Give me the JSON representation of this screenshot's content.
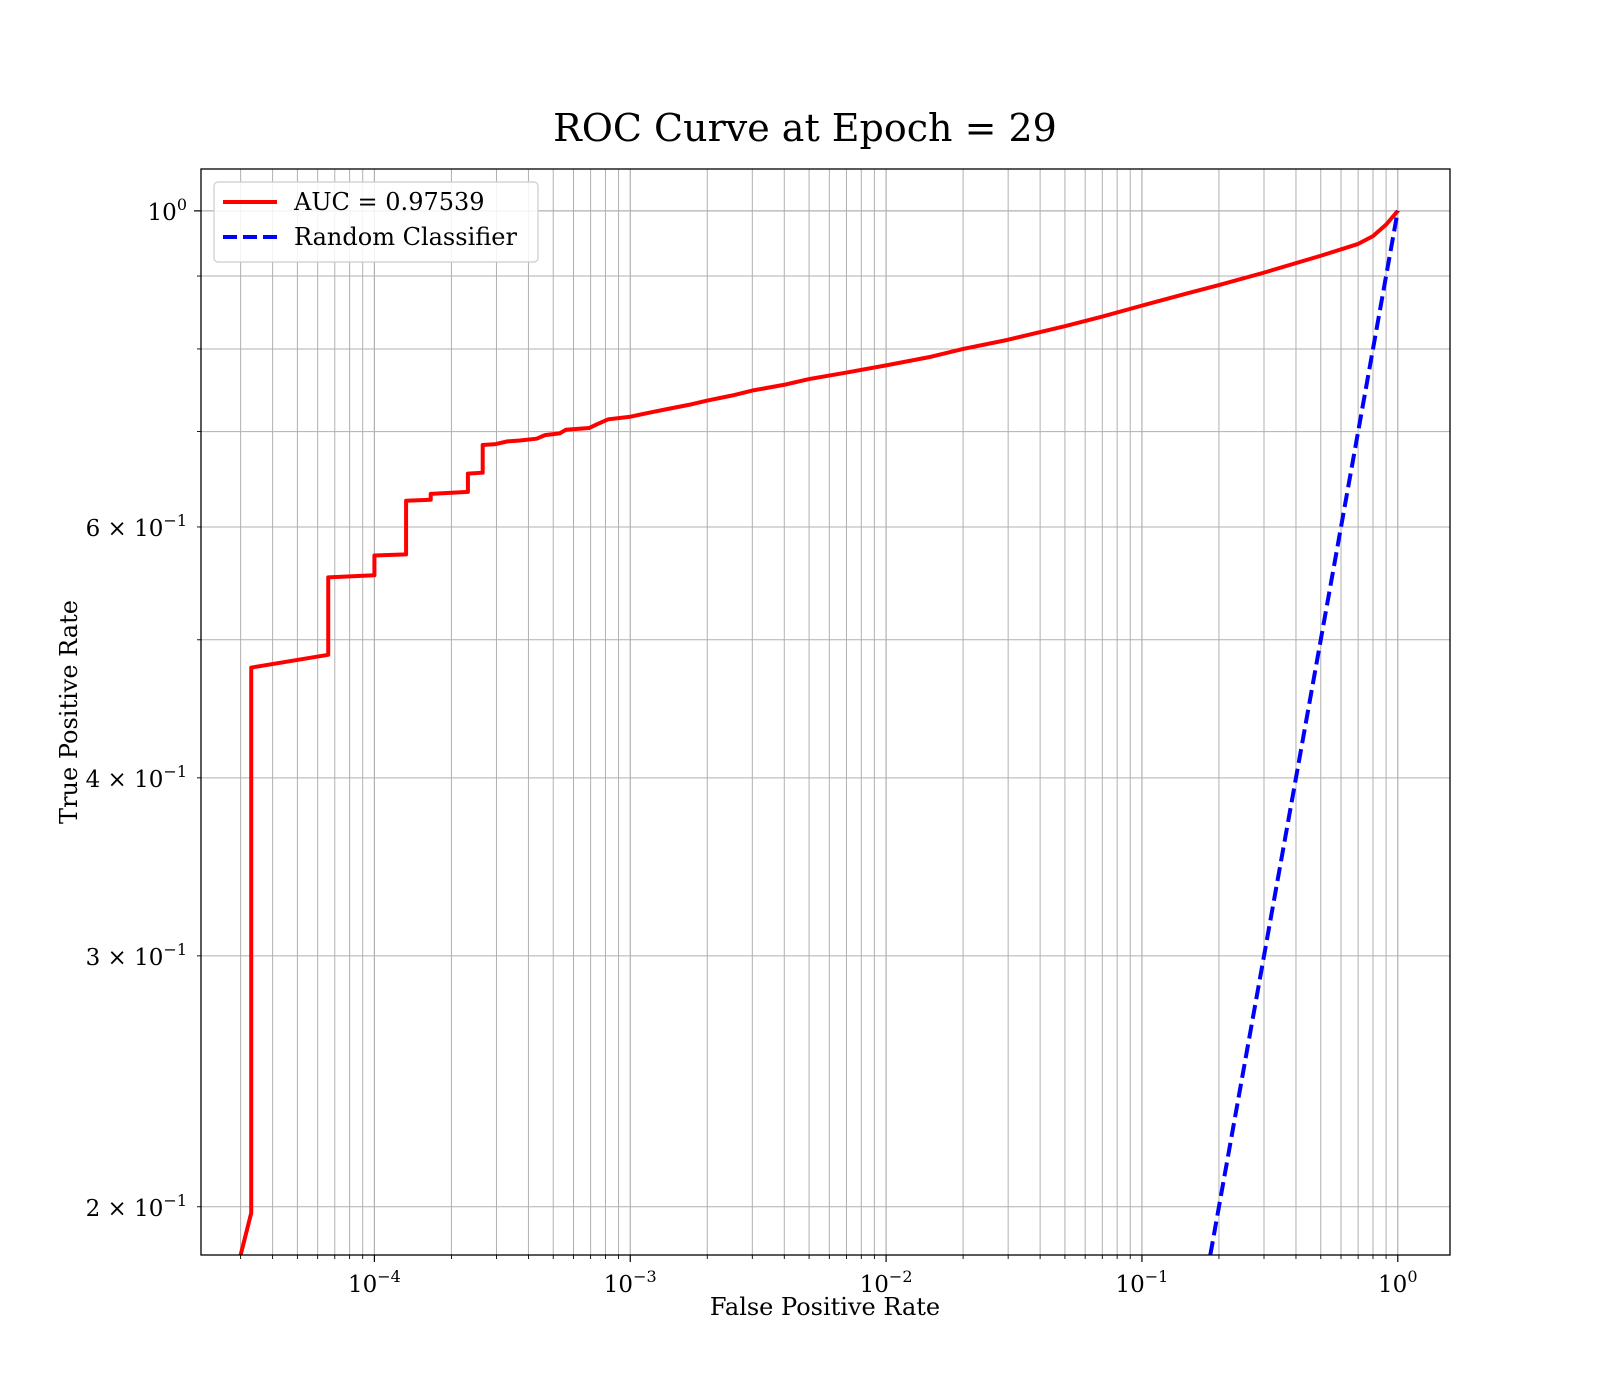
{
  "chart_data": {
    "type": "line",
    "title": "ROC Curve at Epoch = 29",
    "xlabel": "False Positive Rate",
    "ylabel": "True Positive Rate",
    "xscale": "log",
    "yscale": "log",
    "xlim": [
      2.1e-05,
      1.6
    ],
    "ylim": [
      0.185,
      1.07
    ],
    "grid": "major and minor",
    "legend_position": "upper-left",
    "x_ticks": [
      {
        "value": 0.0001,
        "base": "10",
        "exp": "−4"
      },
      {
        "value": 0.001,
        "base": "10",
        "exp": "−3"
      },
      {
        "value": 0.01,
        "base": "10",
        "exp": "−2"
      },
      {
        "value": 0.1,
        "base": "10",
        "exp": "−1"
      },
      {
        "value": 1,
        "base": "10",
        "exp": "0"
      }
    ],
    "y_ticks": [
      {
        "value": 1.0,
        "base": "10",
        "exp": "0"
      },
      {
        "value": 0.6,
        "base": "6 × 10",
        "exp": "−1"
      },
      {
        "value": 0.4,
        "base": "4 × 10",
        "exp": "−1"
      },
      {
        "value": 0.3,
        "base": "3 × 10",
        "exp": "−1"
      },
      {
        "value": 0.2,
        "base": "2 × 10",
        "exp": "−1"
      }
    ],
    "series": [
      {
        "name": "AUC = 0.97539",
        "color": "#ff0000",
        "style": "solid",
        "points": [
          [
            3e-05,
            0.185
          ],
          [
            3.3e-05,
            0.198
          ],
          [
            3.3e-05,
            0.478
          ],
          [
            6.6e-05,
            0.488
          ],
          [
            6.6e-05,
            0.553
          ],
          [
            0.0001,
            0.555
          ],
          [
            0.0001,
            0.573
          ],
          [
            0.000133,
            0.574
          ],
          [
            0.000133,
            0.626
          ],
          [
            0.000166,
            0.627
          ],
          [
            0.000166,
            0.633
          ],
          [
            0.000232,
            0.635
          ],
          [
            0.000232,
            0.654
          ],
          [
            0.000265,
            0.655
          ],
          [
            0.000265,
            0.685
          ],
          [
            0.000298,
            0.686
          ],
          [
            0.000331,
            0.689
          ],
          [
            0.00037,
            0.69
          ],
          [
            0.000431,
            0.692
          ],
          [
            0.000464,
            0.696
          ],
          [
            0.00053,
            0.698
          ],
          [
            0.00056,
            0.702
          ],
          [
            0.00069,
            0.704
          ],
          [
            0.00075,
            0.709
          ],
          [
            0.00082,
            0.714
          ],
          [
            0.001,
            0.717
          ],
          [
            0.0012,
            0.722
          ],
          [
            0.0014,
            0.726
          ],
          [
            0.0017,
            0.731
          ],
          [
            0.002,
            0.736
          ],
          [
            0.0025,
            0.742
          ],
          [
            0.003,
            0.748
          ],
          [
            0.004,
            0.755
          ],
          [
            0.005,
            0.762
          ],
          [
            0.007,
            0.77
          ],
          [
            0.01,
            0.779
          ],
          [
            0.015,
            0.79
          ],
          [
            0.02,
            0.8
          ],
          [
            0.03,
            0.812
          ],
          [
            0.05,
            0.83
          ],
          [
            0.07,
            0.843
          ],
          [
            0.1,
            0.858
          ],
          [
            0.15,
            0.875
          ],
          [
            0.2,
            0.887
          ],
          [
            0.3,
            0.905
          ],
          [
            0.5,
            0.93
          ],
          [
            0.7,
            0.948
          ],
          [
            0.8,
            0.96
          ],
          [
            0.9,
            0.978
          ],
          [
            1.0,
            1.0
          ]
        ]
      },
      {
        "name": "Random Classifier",
        "color": "#0000ff",
        "style": "dashed",
        "points": [
          [
            0.185,
            0.185
          ],
          [
            1.0,
            1.0
          ]
        ]
      }
    ]
  }
}
